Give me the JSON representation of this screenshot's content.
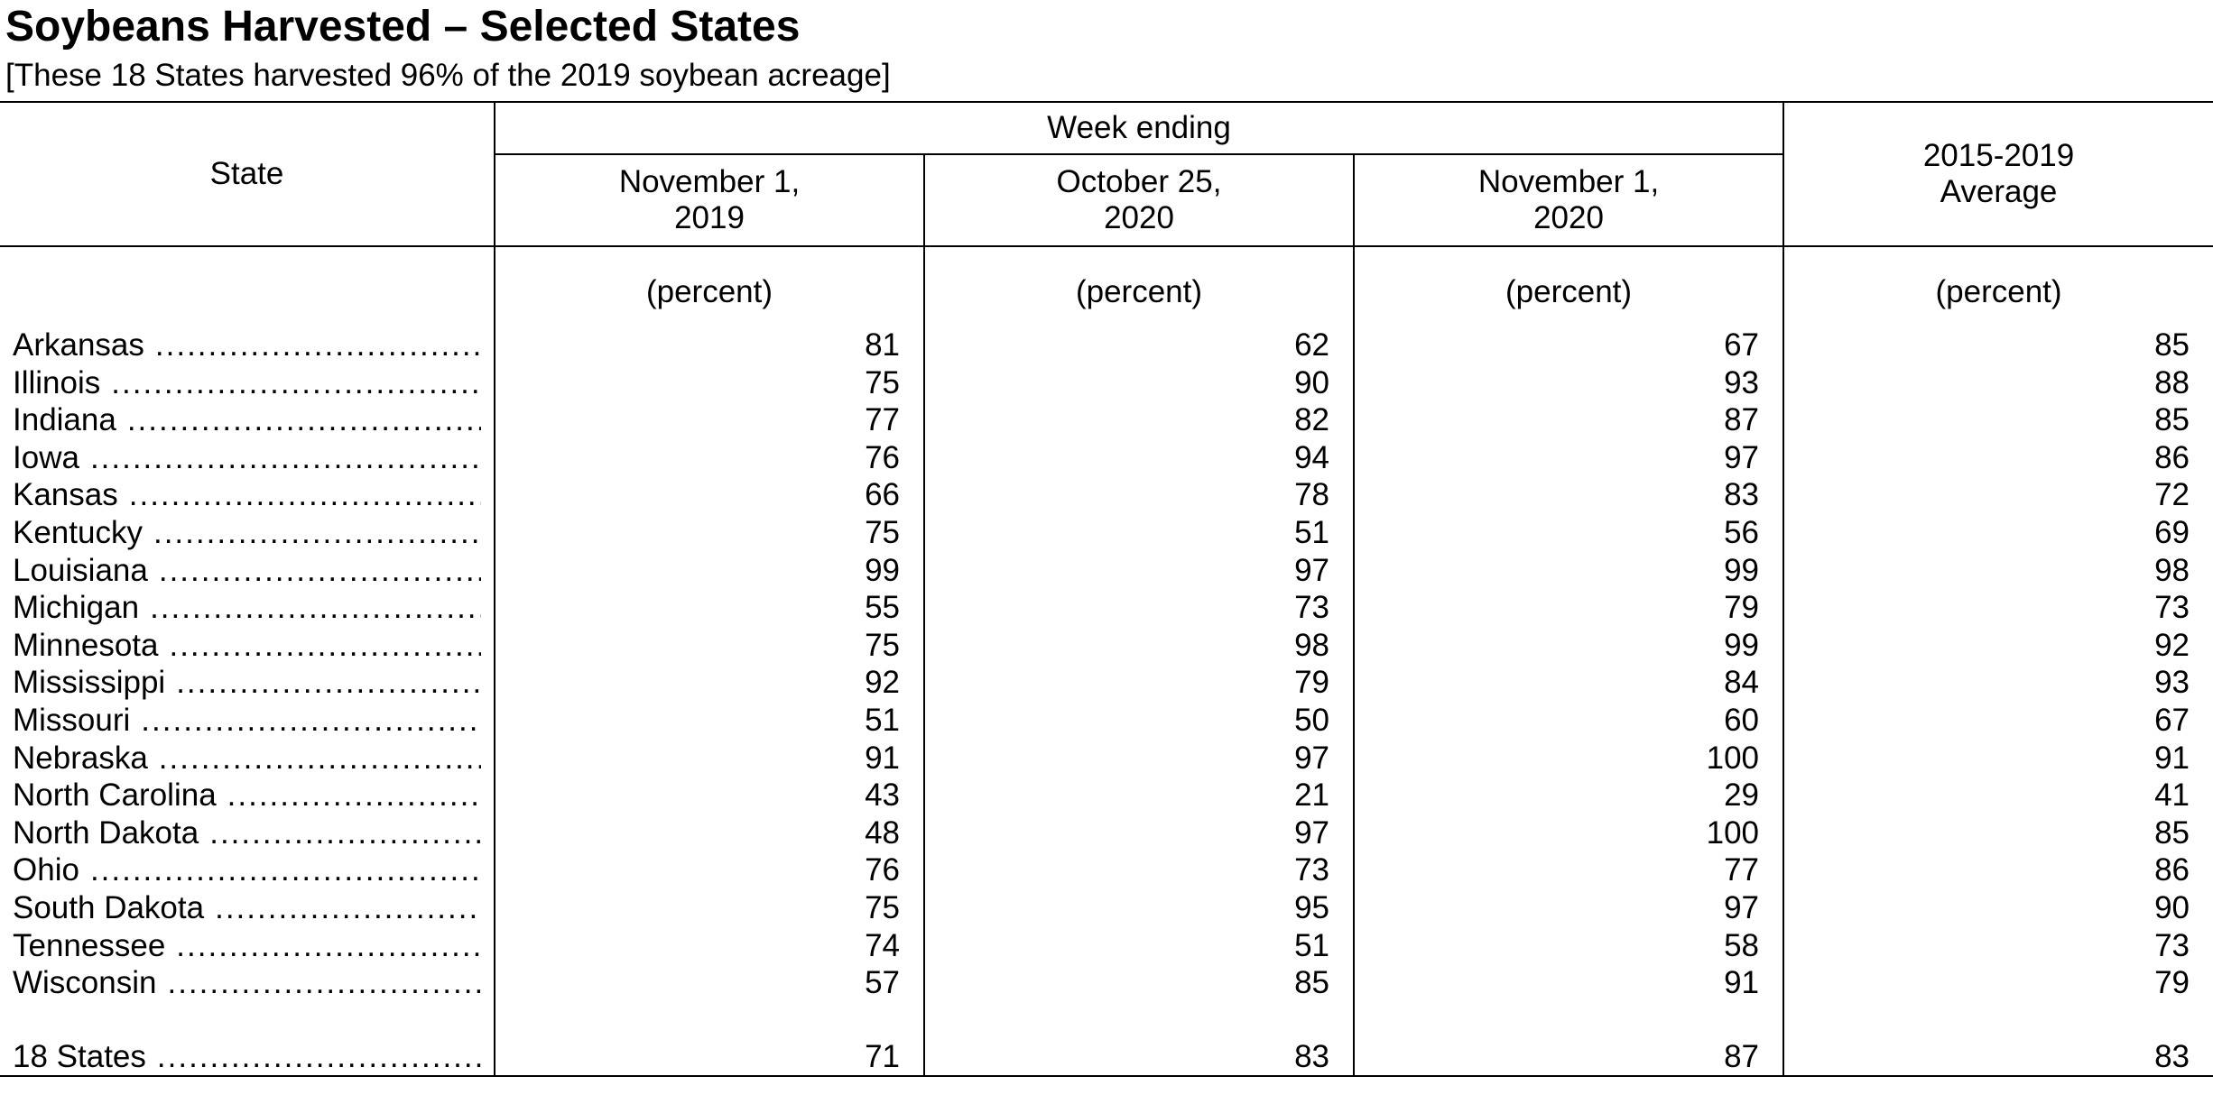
{
  "title": "Soybeans Harvested – Selected States",
  "subtitle": "[These 18 States harvested 96% of the 2019 soybean acreage]",
  "header": {
    "state": "State",
    "week_ending": "Week ending",
    "col1_line1": "November 1,",
    "col1_line2": "2019",
    "col2_line1": "October 25,",
    "col2_line2": "2020",
    "col3_line1": "November 1,",
    "col3_line2": "2020",
    "avg_line1": "2015-2019",
    "avg_line2": "Average",
    "unit": "(percent)"
  },
  "rows": [
    {
      "state": "Arkansas",
      "nov1_2019": "81",
      "oct25_2020": "62",
      "nov1_2020": "67",
      "avg": "85"
    },
    {
      "state": "Illinois",
      "nov1_2019": "75",
      "oct25_2020": "90",
      "nov1_2020": "93",
      "avg": "88"
    },
    {
      "state": "Indiana",
      "nov1_2019": "77",
      "oct25_2020": "82",
      "nov1_2020": "87",
      "avg": "85"
    },
    {
      "state": "Iowa",
      "nov1_2019": "76",
      "oct25_2020": "94",
      "nov1_2020": "97",
      "avg": "86"
    },
    {
      "state": "Kansas",
      "nov1_2019": "66",
      "oct25_2020": "78",
      "nov1_2020": "83",
      "avg": "72"
    },
    {
      "state": "Kentucky",
      "nov1_2019": "75",
      "oct25_2020": "51",
      "nov1_2020": "56",
      "avg": "69"
    },
    {
      "state": "Louisiana",
      "nov1_2019": "99",
      "oct25_2020": "97",
      "nov1_2020": "99",
      "avg": "98"
    },
    {
      "state": "Michigan",
      "nov1_2019": "55",
      "oct25_2020": "73",
      "nov1_2020": "79",
      "avg": "73"
    },
    {
      "state": "Minnesota",
      "nov1_2019": "75",
      "oct25_2020": "98",
      "nov1_2020": "99",
      "avg": "92"
    },
    {
      "state": "Mississippi",
      "nov1_2019": "92",
      "oct25_2020": "79",
      "nov1_2020": "84",
      "avg": "93"
    },
    {
      "state": "Missouri",
      "nov1_2019": "51",
      "oct25_2020": "50",
      "nov1_2020": "60",
      "avg": "67"
    },
    {
      "state": "Nebraska",
      "nov1_2019": "91",
      "oct25_2020": "97",
      "nov1_2020": "100",
      "avg": "91"
    },
    {
      "state": "North Carolina",
      "nov1_2019": "43",
      "oct25_2020": "21",
      "nov1_2020": "29",
      "avg": "41"
    },
    {
      "state": "North Dakota",
      "nov1_2019": "48",
      "oct25_2020": "97",
      "nov1_2020": "100",
      "avg": "85"
    },
    {
      "state": "Ohio",
      "nov1_2019": "76",
      "oct25_2020": "73",
      "nov1_2020": "77",
      "avg": "86"
    },
    {
      "state": "South Dakota",
      "nov1_2019": "75",
      "oct25_2020": "95",
      "nov1_2020": "97",
      "avg": "90"
    },
    {
      "state": "Tennessee",
      "nov1_2019": "74",
      "oct25_2020": "51",
      "nov1_2020": "58",
      "avg": "73"
    },
    {
      "state": "Wisconsin",
      "nov1_2019": "57",
      "oct25_2020": "85",
      "nov1_2020": "91",
      "avg": "79"
    }
  ],
  "total": {
    "state": "18 States",
    "nov1_2019": "71",
    "oct25_2020": "83",
    "nov1_2020": "87",
    "avg": "83"
  }
}
